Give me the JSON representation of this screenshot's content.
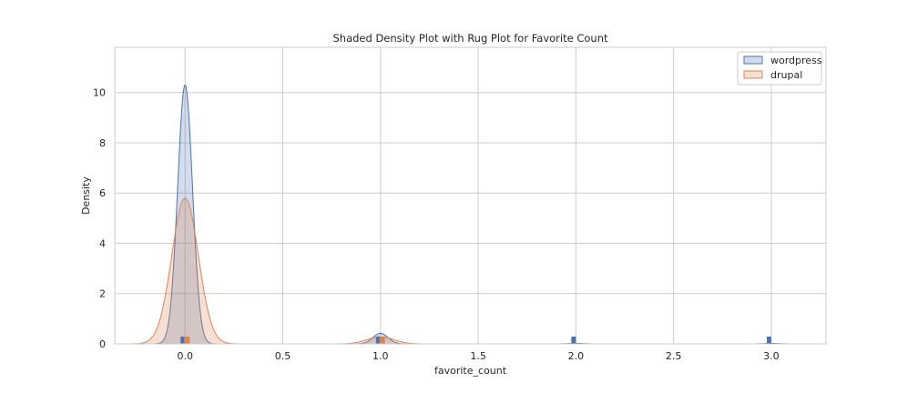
{
  "chart_data": {
    "type": "area",
    "title": "Shaded Density Plot with Rug Plot for Favorite Count",
    "xlabel": "favorite_count",
    "ylabel": "Density",
    "xlim": [
      -0.36,
      3.28
    ],
    "ylim": [
      0,
      11.8
    ],
    "xticks": [
      0.0,
      0.5,
      1.0,
      1.5,
      2.0,
      2.5,
      3.0
    ],
    "xtick_labels": [
      "0.0",
      "0.5",
      "1.0",
      "1.5",
      "2.0",
      "2.5",
      "3.0"
    ],
    "yticks": [
      0,
      2,
      4,
      6,
      8,
      10
    ],
    "ytick_labels": [
      "0",
      "2",
      "4",
      "6",
      "8",
      "10"
    ],
    "grid": true,
    "legend_position": "top-right",
    "series": [
      {
        "name": "wordpress",
        "color": "#4c72b0",
        "kde_components": [
          {
            "mean": 0.0,
            "sd": 0.038,
            "peak": 10.3
          },
          {
            "mean": 1.0,
            "sd": 0.038,
            "peak": 0.42
          },
          {
            "mean": 2.0,
            "sd": 0.038,
            "peak": 0.02
          },
          {
            "mean": 3.0,
            "sd": 0.038,
            "peak": 0.02
          }
        ],
        "rug": [
          0.0,
          1.0,
          2.0,
          3.0
        ]
      },
      {
        "name": "drupal",
        "color": "#dd8452",
        "kde_components": [
          {
            "mean": 0.0,
            "sd": 0.068,
            "peak": 5.8
          },
          {
            "mean": 1.0,
            "sd": 0.068,
            "peak": 0.28
          }
        ],
        "rug": [
          0.0,
          1.0
        ]
      }
    ]
  }
}
